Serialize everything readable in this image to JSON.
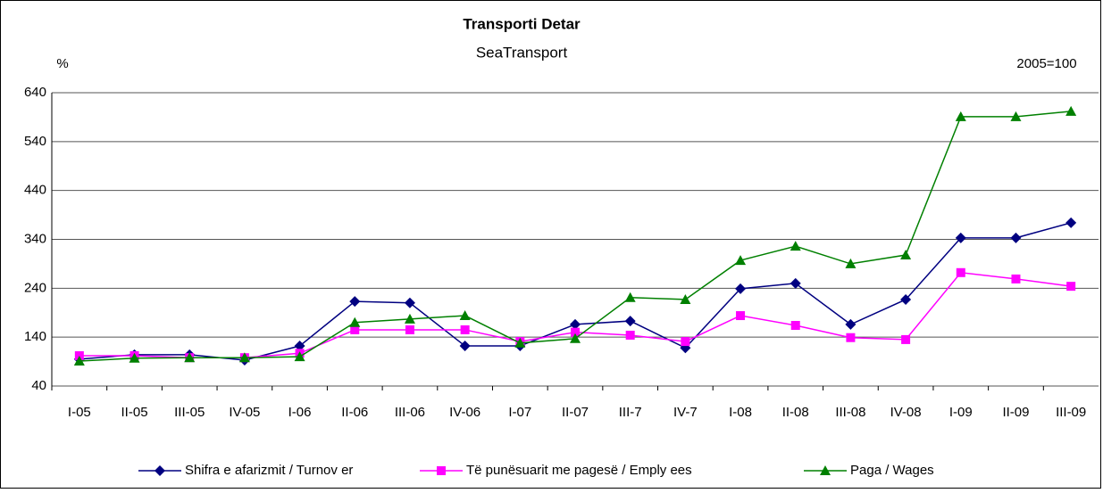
{
  "chart_data": {
    "type": "line",
    "title": "Transporti Detar",
    "subtitle": "SeaTransport",
    "y_label": "%",
    "annotation": "2005=100",
    "categories": [
      "I-05",
      "II-05",
      "III-05",
      "IV-05",
      "I-06",
      "II-06",
      "III-06",
      "IV-06",
      "I-07",
      "II-07",
      "III-7",
      "IV-7",
      "I-08",
      "II-08",
      "III-08",
      "IV-08",
      "I-09",
      "II-09",
      "III-09"
    ],
    "series": [
      {
        "name": "Shifra e afarizmit / Turnov er",
        "color": "#000080",
        "marker": "diamond",
        "values": [
          95,
          104,
          104,
          93,
          122,
          213,
          210,
          122,
          122,
          166,
          173,
          118,
          239,
          250,
          166,
          217,
          343,
          343,
          374
        ]
      },
      {
        "name": "Të punësuarit me pagesë / Emply ees",
        "color": "#ff00ff",
        "marker": "square",
        "values": [
          102,
          102,
          98,
          98,
          107,
          155,
          155,
          155,
          131,
          150,
          144,
          131,
          184,
          164,
          139,
          135,
          272,
          259,
          244
        ]
      },
      {
        "name": "Paga / Wages",
        "color": "#008000",
        "marker": "triangle",
        "values": [
          91,
          97,
          98,
          98,
          100,
          170,
          177,
          184,
          128,
          137,
          221,
          217,
          297,
          326,
          290,
          308,
          591,
          591,
          602
        ]
      }
    ],
    "ylim": [
      40,
      640
    ],
    "yticks": [
      40,
      140,
      240,
      340,
      440,
      540,
      640
    ],
    "grid": true,
    "legend": "bottom"
  }
}
